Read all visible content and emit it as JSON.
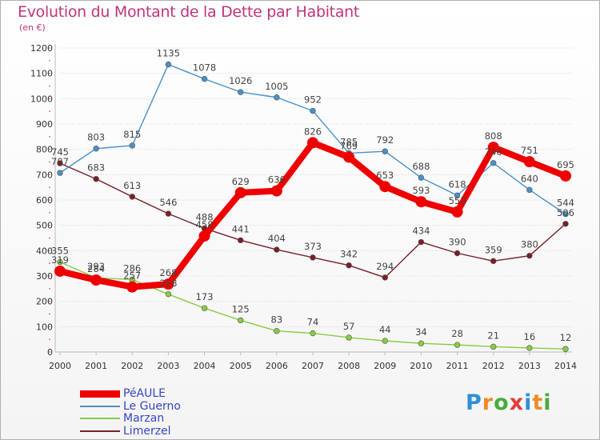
{
  "title": "Evolution du Montant de la Dette par Habitant",
  "unit": "(en €)",
  "logo": {
    "letters": [
      {
        "ch": "P",
        "color": "#2f8fd8"
      },
      {
        "ch": "r",
        "color": "#f08a24"
      },
      {
        "ch": "o",
        "color": "#4aab3d"
      },
      {
        "ch": "x",
        "color": "#e23b3b"
      },
      {
        "ch": "i",
        "color": "#2f8fd8"
      },
      {
        "ch": "t",
        "color": "#f08a24"
      },
      {
        "ch": "i",
        "color": "#4aab3d"
      }
    ]
  },
  "chart_data": {
    "type": "line",
    "x": [
      "2000",
      "2001",
      "2002",
      "2003",
      "2004",
      "2005",
      "2006",
      "2007",
      "2008",
      "2009",
      "2010",
      "2011",
      "2012",
      "2013",
      "2014"
    ],
    "ylim": [
      0,
      1200
    ],
    "yticks": [
      0,
      100,
      200,
      300,
      400,
      500,
      600,
      700,
      800,
      900,
      1000,
      1100,
      1200
    ],
    "grid": true,
    "legend": "bottom-left",
    "series": [
      {
        "name": "PéAULE",
        "color": "#ee0000",
        "values": [
          319,
          284,
          257,
          268,
          458,
          629,
          636,
          826,
          769,
          653,
          593,
          553,
          808,
          751,
          695
        ]
      },
      {
        "name": "Le Guerno",
        "color": "#4a90c8",
        "values": [
          707,
          803,
          815,
          1135,
          1078,
          1026,
          1005,
          952,
          785,
          792,
          688,
          618,
          746,
          640,
          544
        ]
      },
      {
        "name": "Marzan",
        "color": "#88cc44",
        "values": [
          355,
          293,
          286,
          228,
          173,
          125,
          83,
          74,
          57,
          44,
          34,
          28,
          21,
          16,
          12
        ]
      },
      {
        "name": "Limerzel",
        "color": "#7a1e28",
        "values": [
          745,
          683,
          613,
          546,
          488,
          441,
          404,
          373,
          342,
          294,
          434,
          390,
          359,
          380,
          506
        ]
      }
    ]
  }
}
